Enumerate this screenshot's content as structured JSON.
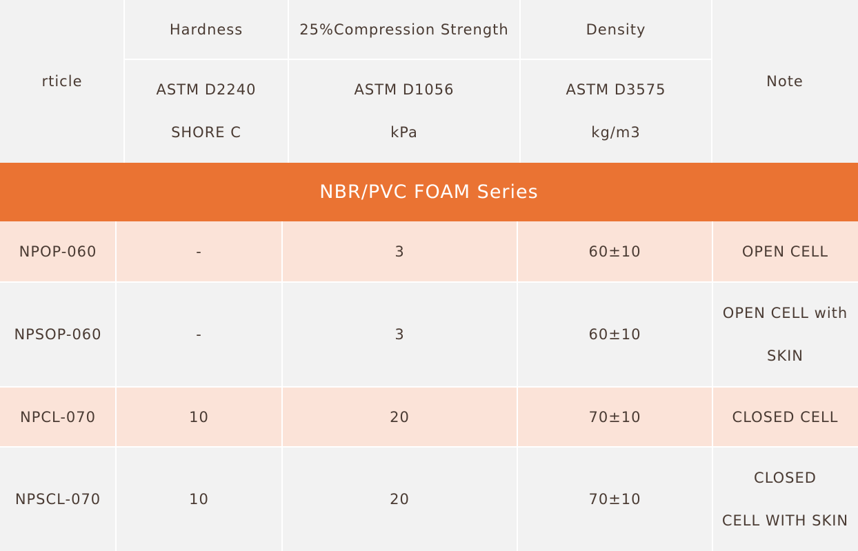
{
  "header": {
    "article_label": "rticle",
    "note_label": "Note",
    "columns": [
      {
        "name": "Hardness",
        "standard": "ASTM D2240",
        "unit": "SHORE C"
      },
      {
        "name": "25%Compression Strength",
        "standard": "ASTM D1056",
        "unit": "kPa"
      },
      {
        "name": "Density",
        "standard": "ASTM D3575",
        "unit": "kg/m3"
      }
    ]
  },
  "series_title": "NBR/PVC FOAM Series",
  "rows": [
    {
      "article": "NPOP-060",
      "hardness": "-",
      "compression": "3",
      "density": "60±10",
      "note": [
        "OPEN CELL"
      ]
    },
    {
      "article": "NPSOP-060",
      "hardness": "-",
      "compression": "3",
      "density": "60±10",
      "note": [
        "OPEN CELL with",
        "SKIN"
      ]
    },
    {
      "article": "NPCL-070",
      "hardness": "10",
      "compression": "20",
      "density": "70±10",
      "note": [
        "CLOSED CELL"
      ]
    },
    {
      "article": "NPSCL-070",
      "hardness": "10",
      "compression": "20",
      "density": "70±10",
      "note": [
        "CLOSED",
        "CELL WITH SKIN"
      ]
    }
  ],
  "colors": {
    "banner": "#ea7333",
    "peach_row": "#fbe3d8",
    "grey_row": "#f2f2f2"
  }
}
